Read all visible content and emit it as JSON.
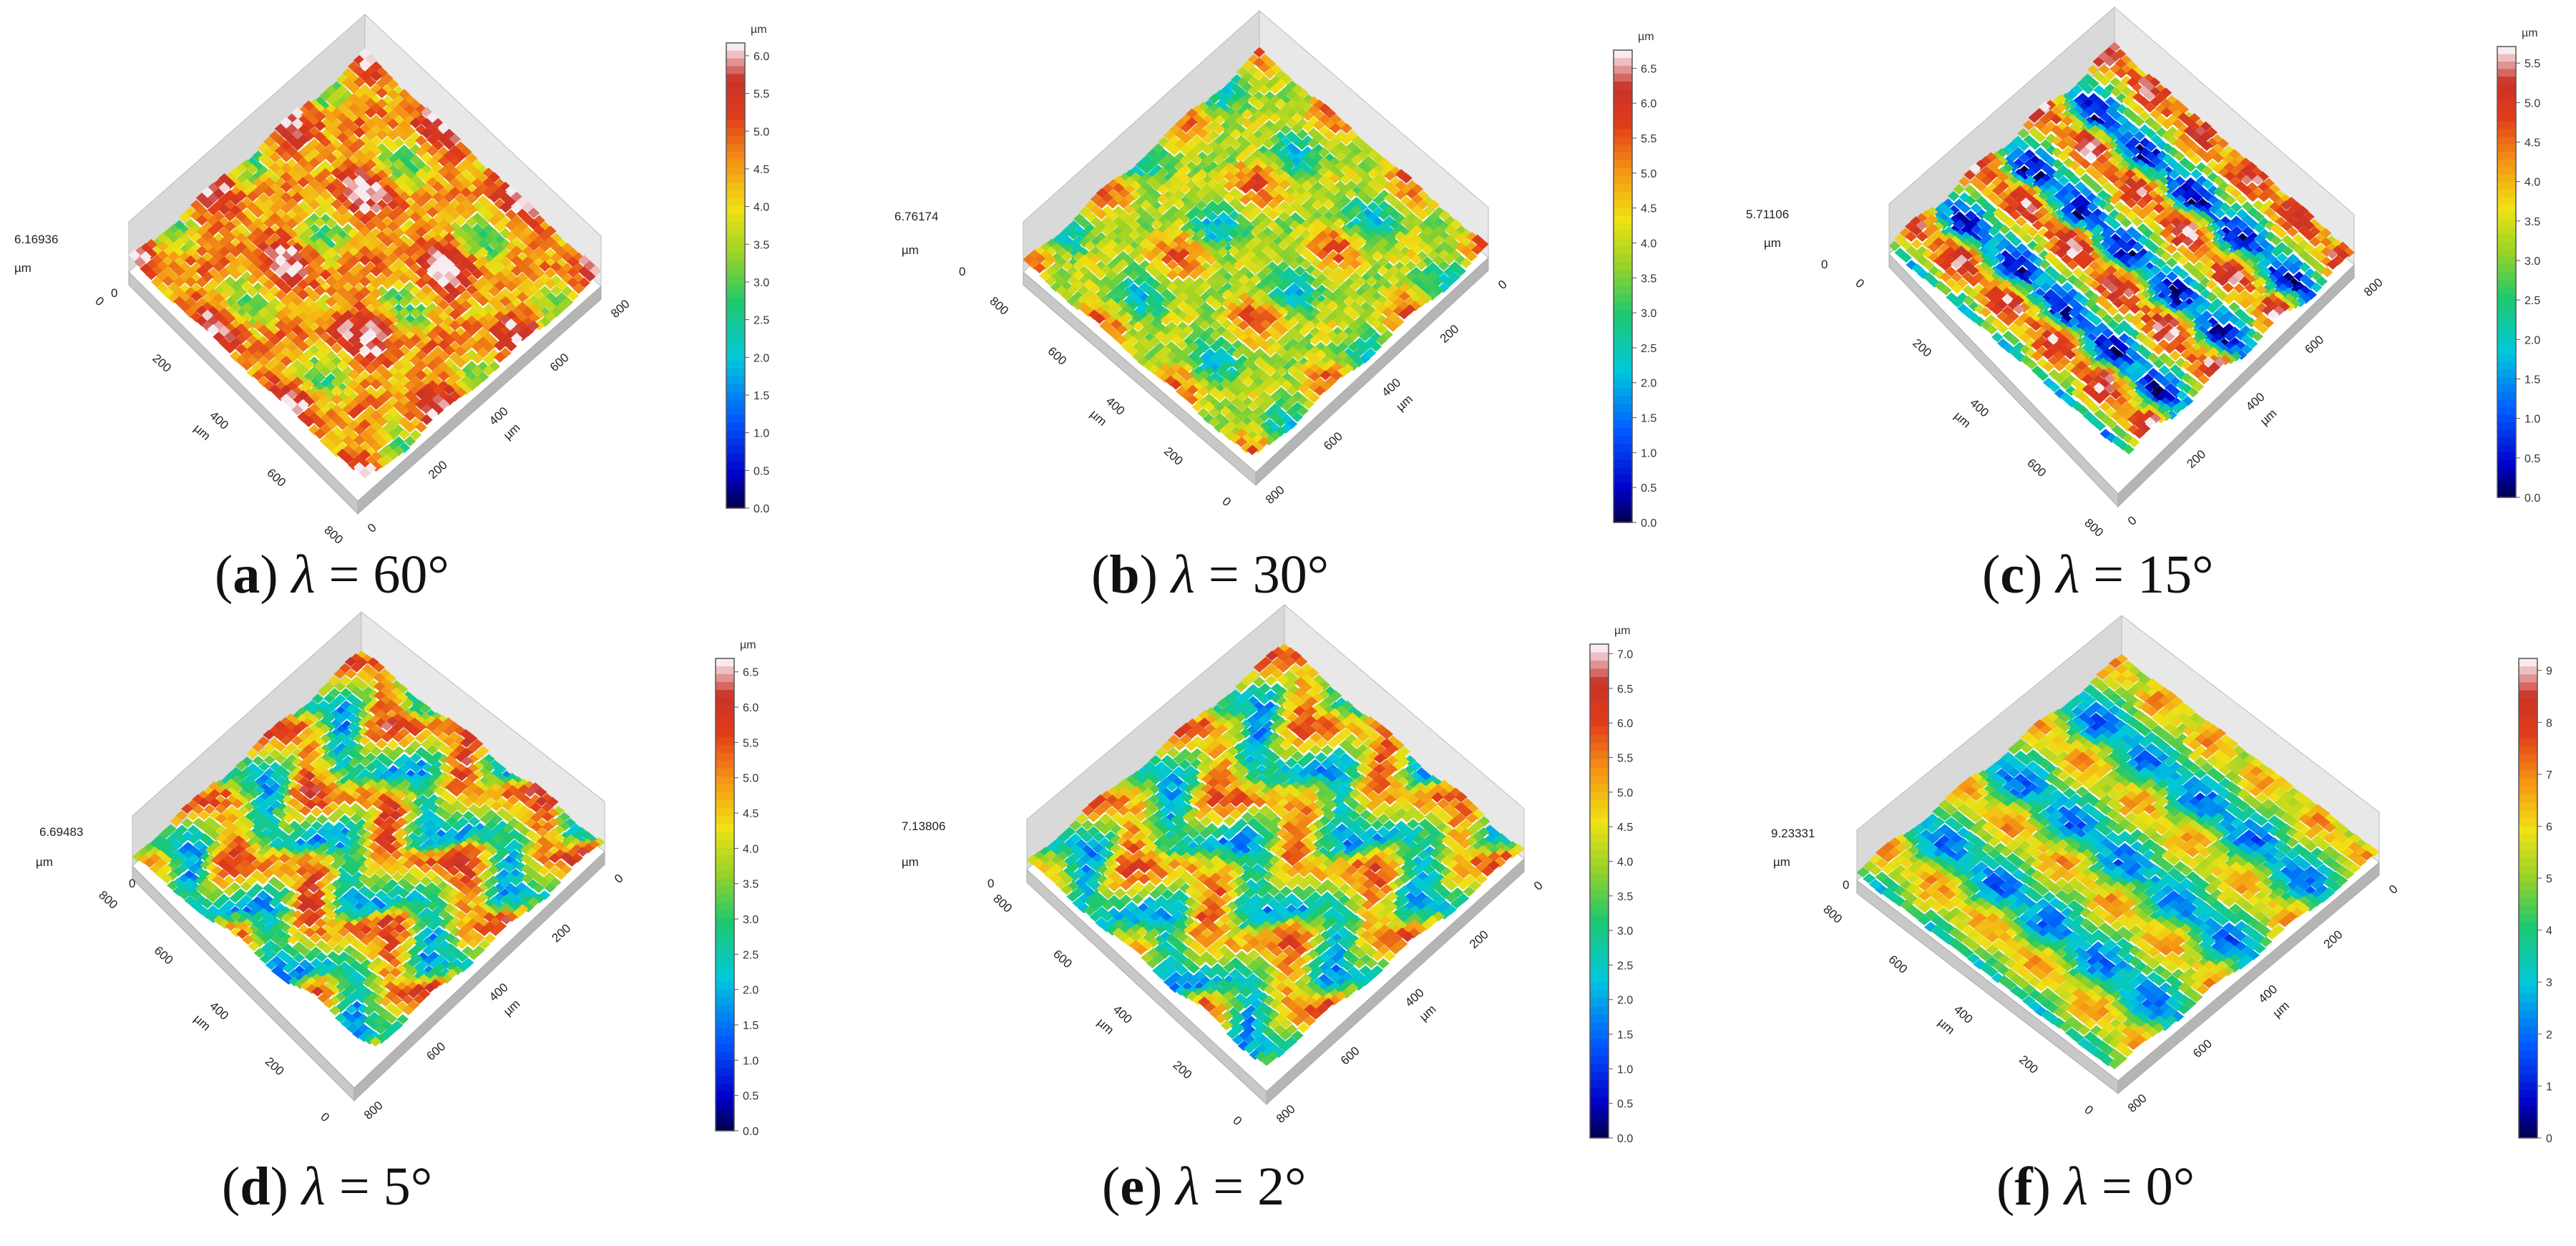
{
  "chart_data": [
    {
      "type": "heatmap",
      "label": "(a)",
      "lambda": "60°",
      "z_max_label": "6.16936",
      "z_unit": "µm",
      "x_unit": "µm",
      "y_unit": "µm",
      "x_ticks": [
        "0",
        "200",
        "400",
        "600",
        "800"
      ],
      "y_ticks": [
        "0",
        "200",
        "400",
        "600",
        "800"
      ],
      "colorbar": {
        "unit": "µm",
        "ticks": [
          "0.0",
          "0.5",
          "1.0",
          "1.5",
          "2.0",
          "2.5",
          "3.0",
          "3.5",
          "4.0",
          "4.5",
          "5.0",
          "5.5",
          "6.0"
        ],
        "range": [
          0,
          6.17
        ]
      },
      "mean_level": 4.6,
      "pattern": "dimples"
    },
    {
      "type": "heatmap",
      "label": "(b)",
      "lambda": "30°",
      "z_max_label": "6.76174",
      "z_unit": "µm",
      "x_unit": "µm",
      "y_unit": "µm",
      "x_ticks": [
        "800",
        "600",
        "400",
        "200",
        "0"
      ],
      "y_ticks": [
        "800",
        "600",
        "400",
        "200",
        "0"
      ],
      "colorbar": {
        "unit": "µm",
        "ticks": [
          "0.0",
          "0.5",
          "1.0",
          "1.5",
          "2.0",
          "2.5",
          "3.0",
          "3.5",
          "4.0",
          "4.5",
          "5.0",
          "5.5",
          "6.0",
          "6.5"
        ],
        "range": [
          0,
          6.76
        ]
      },
      "mean_level": 3.9,
      "pattern": "dimples"
    },
    {
      "type": "heatmap",
      "label": "(c)",
      "lambda": "15°",
      "z_max_label": "5.71106",
      "z_unit": "µm",
      "x_unit": "µm",
      "y_unit": "µm",
      "x_ticks": [
        "0",
        "200",
        "400",
        "600",
        "800"
      ],
      "y_ticks": [
        "0",
        "200",
        "400",
        "600",
        "800"
      ],
      "colorbar": {
        "unit": "µm",
        "ticks": [
          "0.0",
          "0.5",
          "1.0",
          "1.5",
          "2.0",
          "2.5",
          "3.0",
          "3.5",
          "4.0",
          "4.5",
          "5.0",
          "5.5"
        ],
        "range": [
          0,
          5.71
        ]
      },
      "mean_level": 2.9,
      "pattern": "stripes"
    },
    {
      "type": "heatmap",
      "label": "(d)",
      "lambda": "5°",
      "z_max_label": "6.69483",
      "z_unit": "µm",
      "x_unit": "µm",
      "y_unit": "µm",
      "x_ticks": [
        "800",
        "600",
        "400",
        "200",
        "0"
      ],
      "y_ticks": [
        "800",
        "600",
        "400",
        "200",
        "0"
      ],
      "colorbar": {
        "unit": "µm",
        "ticks": [
          "0.0",
          "0.5",
          "1.0",
          "1.5",
          "2.0",
          "2.5",
          "3.0",
          "3.5",
          "4.0",
          "4.5",
          "5.0",
          "5.5",
          "6.0",
          "6.5"
        ],
        "range": [
          0,
          6.69
        ]
      },
      "mean_level": 3.8,
      "pattern": "waves"
    },
    {
      "type": "heatmap",
      "label": "(e)",
      "lambda": "2°",
      "z_max_label": "7.13806",
      "z_unit": "µm",
      "x_unit": "µm",
      "y_unit": "µm",
      "x_ticks": [
        "800",
        "600",
        "400",
        "200",
        "0"
      ],
      "y_ticks": [
        "800",
        "600",
        "400",
        "200",
        "0"
      ],
      "colorbar": {
        "unit": "µm",
        "ticks": [
          "0.0",
          "0.5",
          "1.0",
          "1.5",
          "2.0",
          "2.5",
          "3.0",
          "3.5",
          "4.0",
          "4.5",
          "5.0",
          "5.5",
          "6.0",
          "6.5",
          "7.0"
        ],
        "range": [
          0,
          7.14
        ]
      },
      "mean_level": 3.9,
      "pattern": "waves"
    },
    {
      "type": "heatmap",
      "label": "(f)",
      "lambda": "0°",
      "z_max_label": "9.23331",
      "z_unit": "µm",
      "x_unit": "µm",
      "y_unit": "µm",
      "x_ticks": [
        "800",
        "600",
        "400",
        "200",
        "0"
      ],
      "y_ticks": [
        "800",
        "600",
        "400",
        "200",
        "0"
      ],
      "colorbar": {
        "unit": "",
        "ticks": [
          "0",
          "1",
          "2",
          "3",
          "4",
          "5",
          "6",
          "7",
          "8",
          "9"
        ],
        "range": [
          0,
          9.23
        ]
      },
      "mean_level": 4.4,
      "pattern": "stripes"
    }
  ]
}
